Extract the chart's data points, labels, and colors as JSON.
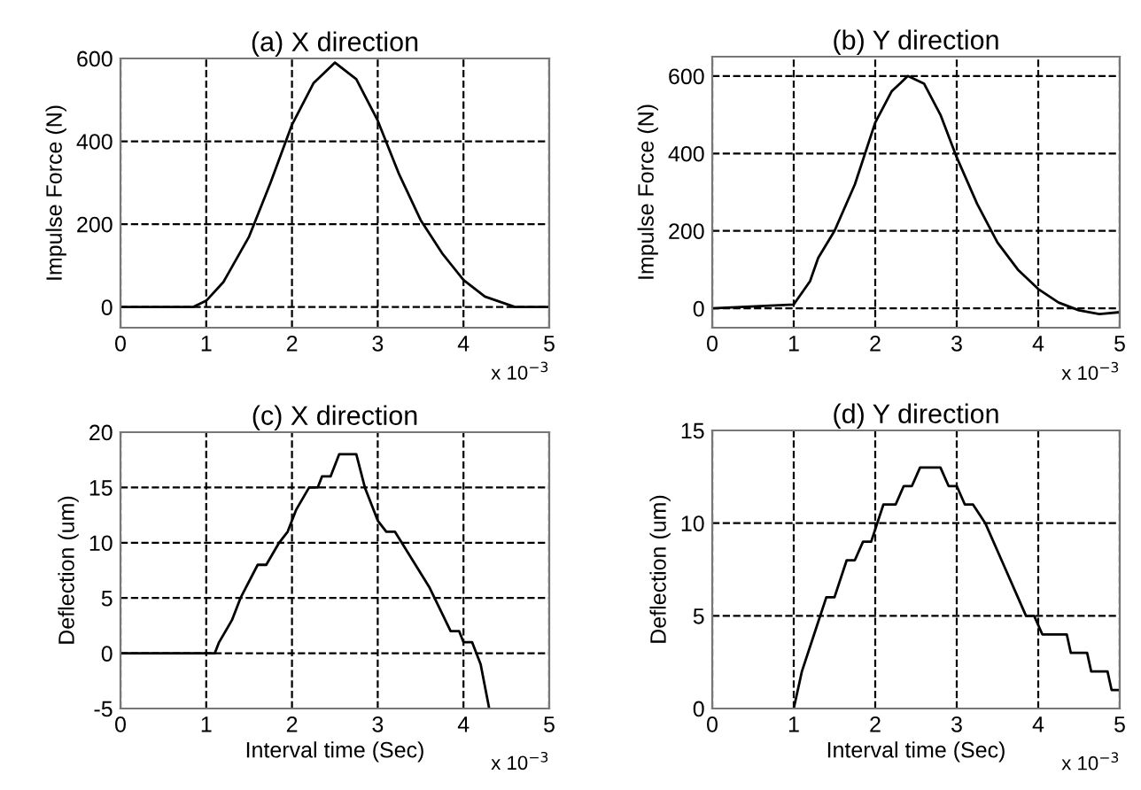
{
  "chart_data": [
    {
      "type": "line",
      "title": "(a) X direction",
      "ylabel": "Impulse Force (N)",
      "annotations": [
        "x 10$^{−3}$"
      ],
      "xlim": [
        0,
        5
      ],
      "xticks": [
        0,
        1,
        2,
        3,
        4,
        5
      ],
      "ylim": [
        -50,
        600
      ],
      "yticks": [
        0,
        200,
        400,
        600
      ],
      "grid": true,
      "x": [
        0,
        0.85,
        1.0,
        1.2,
        1.5,
        1.75,
        2.0,
        2.25,
        2.5,
        2.75,
        3.0,
        3.25,
        3.5,
        3.75,
        4.0,
        4.25,
        4.6,
        5.0
      ],
      "series": [
        {
          "color": "#000000",
          "values": [
            0,
            0,
            15,
            60,
            170,
            300,
            440,
            540,
            590,
            550,
            450,
            320,
            210,
            130,
            65,
            25,
            0,
            0
          ]
        }
      ]
    },
    {
      "type": "line",
      "title": "(b) Y direction",
      "ylabel": "Impulse Force (N)",
      "annotations": [
        "x 10$^{−3}$"
      ],
      "xlim": [
        0,
        5
      ],
      "xticks": [
        0,
        1,
        2,
        3,
        4,
        5
      ],
      "ylim": [
        -50,
        650
      ],
      "yticks": [
        0,
        200,
        400,
        600
      ],
      "grid": true,
      "x": [
        0,
        1.0,
        1.2,
        1.3,
        1.5,
        1.75,
        2.0,
        2.2,
        2.4,
        2.6,
        2.8,
        3.0,
        3.25,
        3.5,
        3.75,
        4.0,
        4.25,
        4.5,
        4.75,
        5.0
      ],
      "series": [
        {
          "color": "#000000",
          "values": [
            0,
            10,
            70,
            130,
            200,
            320,
            480,
            560,
            600,
            580,
            500,
            390,
            270,
            170,
            100,
            50,
            15,
            -5,
            -15,
            -10
          ]
        }
      ]
    },
    {
      "type": "line",
      "title": "(c) X direction",
      "xlabel": "Interval time (Sec)",
      "ylabel": "Deflection (um)",
      "annotations": [
        "x 10$^{−3}$"
      ],
      "xlim": [
        0,
        5
      ],
      "xticks": [
        0,
        1,
        2,
        3,
        4,
        5
      ],
      "ylim": [
        -5,
        20
      ],
      "yticks": [
        -5,
        0,
        5,
        10,
        15,
        20
      ],
      "grid": true,
      "x": [
        0,
        1.1,
        1.15,
        1.3,
        1.4,
        1.6,
        1.7,
        1.85,
        1.95,
        2.05,
        2.2,
        2.3,
        2.35,
        2.45,
        2.55,
        2.75,
        2.85,
        3.0,
        3.1,
        3.2,
        3.6,
        3.85,
        3.95,
        4.0,
        4.1,
        4.2,
        4.3
      ],
      "series": [
        {
          "color": "#000000",
          "values": [
            0,
            0,
            1,
            3,
            5,
            8,
            8,
            10,
            11,
            13,
            15,
            15,
            16,
            16,
            18,
            18,
            15,
            12,
            11,
            11,
            6,
            2,
            2,
            1,
            1,
            -1,
            -5
          ]
        }
      ]
    },
    {
      "type": "line",
      "title": "(d) Y direction",
      "xlabel": "Interval time (Sec)",
      "ylabel": "Deflection (um)",
      "annotations": [
        "x 10$^{−3}$"
      ],
      "xlim": [
        0,
        5
      ],
      "xticks": [
        0,
        1,
        2,
        3,
        4,
        5
      ],
      "ylim": [
        0,
        15
      ],
      "yticks": [
        0,
        5,
        10,
        15
      ],
      "grid": true,
      "x": [
        1.0,
        1.1,
        1.25,
        1.4,
        1.5,
        1.65,
        1.75,
        1.85,
        1.95,
        2.1,
        2.25,
        2.35,
        2.45,
        2.55,
        2.8,
        2.9,
        3.0,
        3.1,
        3.2,
        3.35,
        3.55,
        3.75,
        3.85,
        3.95,
        4.05,
        4.35,
        4.4,
        4.6,
        4.65,
        4.85,
        4.9,
        5.0
      ],
      "series": [
        {
          "color": "#000000",
          "values": [
            0,
            2,
            4,
            6,
            6,
            8,
            8,
            9,
            9,
            11,
            11,
            12,
            12,
            13,
            13,
            12,
            12,
            11,
            11,
            10,
            8,
            6,
            5,
            5,
            4,
            4,
            3,
            3,
            2,
            2,
            1,
            1
          ]
        }
      ]
    }
  ]
}
